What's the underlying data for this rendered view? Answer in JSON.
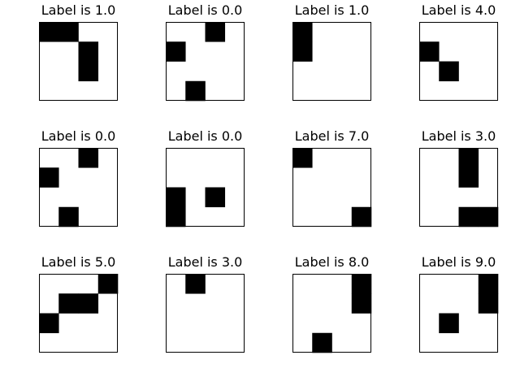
{
  "chart_data": {
    "type": "heatmap",
    "grid_size": [
      4,
      4
    ],
    "colormap": "gray_r",
    "panels": [
      {
        "title": "Label is 1.0",
        "cells": [
          [
            1,
            1,
            0,
            0
          ],
          [
            0,
            0,
            1,
            0
          ],
          [
            0,
            0,
            1,
            0
          ],
          [
            0,
            0,
            0,
            0
          ]
        ]
      },
      {
        "title": "Label is 0.0",
        "cells": [
          [
            0,
            0,
            1,
            0
          ],
          [
            1,
            0,
            0,
            0
          ],
          [
            0,
            0,
            0,
            0
          ],
          [
            0,
            1,
            0,
            0
          ]
        ]
      },
      {
        "title": "Label is 1.0",
        "cells": [
          [
            1,
            0,
            0,
            0
          ],
          [
            1,
            0,
            0,
            0
          ],
          [
            0,
            0,
            0,
            0
          ],
          [
            0,
            0,
            0,
            0
          ]
        ]
      },
      {
        "title": "Label is 4.0",
        "cells": [
          [
            0,
            0,
            0,
            0
          ],
          [
            1,
            0,
            0,
            0
          ],
          [
            0,
            1,
            0,
            0
          ],
          [
            0,
            0,
            0,
            0
          ]
        ]
      },
      {
        "title": "Label is 0.0",
        "cells": [
          [
            0,
            0,
            1,
            0
          ],
          [
            1,
            0,
            0,
            0
          ],
          [
            0,
            0,
            0,
            0
          ],
          [
            0,
            1,
            0,
            0
          ]
        ]
      },
      {
        "title": "Label is 0.0",
        "cells": [
          [
            0,
            0,
            0,
            0
          ],
          [
            0,
            0,
            0,
            0
          ],
          [
            1,
            0,
            1,
            0
          ],
          [
            1,
            0,
            0,
            0
          ]
        ]
      },
      {
        "title": "Label is 7.0",
        "cells": [
          [
            1,
            0,
            0,
            0
          ],
          [
            0,
            0,
            0,
            0
          ],
          [
            0,
            0,
            0,
            0
          ],
          [
            0,
            0,
            0,
            1
          ]
        ]
      },
      {
        "title": "Label is 3.0",
        "cells": [
          [
            0,
            0,
            1,
            0
          ],
          [
            0,
            0,
            1,
            0
          ],
          [
            0,
            0,
            0,
            0
          ],
          [
            0,
            0,
            1,
            1
          ]
        ]
      },
      {
        "title": "Label is 5.0",
        "cells": [
          [
            0,
            0,
            0,
            1
          ],
          [
            0,
            1,
            1,
            0
          ],
          [
            1,
            0,
            0,
            0
          ],
          [
            0,
            0,
            0,
            0
          ]
        ]
      },
      {
        "title": "Label is 3.0",
        "cells": [
          [
            0,
            1,
            0,
            0
          ],
          [
            0,
            0,
            0,
            0
          ],
          [
            0,
            0,
            0,
            0
          ],
          [
            0,
            0,
            0,
            0
          ]
        ]
      },
      {
        "title": "Label is 8.0",
        "cells": [
          [
            0,
            0,
            0,
            1
          ],
          [
            0,
            0,
            0,
            1
          ],
          [
            0,
            0,
            0,
            0
          ],
          [
            0,
            1,
            0,
            0
          ]
        ]
      },
      {
        "title": "Label is 9.0",
        "cells": [
          [
            0,
            0,
            0,
            1
          ],
          [
            0,
            0,
            0,
            1
          ],
          [
            0,
            1,
            0,
            0
          ],
          [
            0,
            0,
            0,
            0
          ]
        ]
      }
    ]
  }
}
